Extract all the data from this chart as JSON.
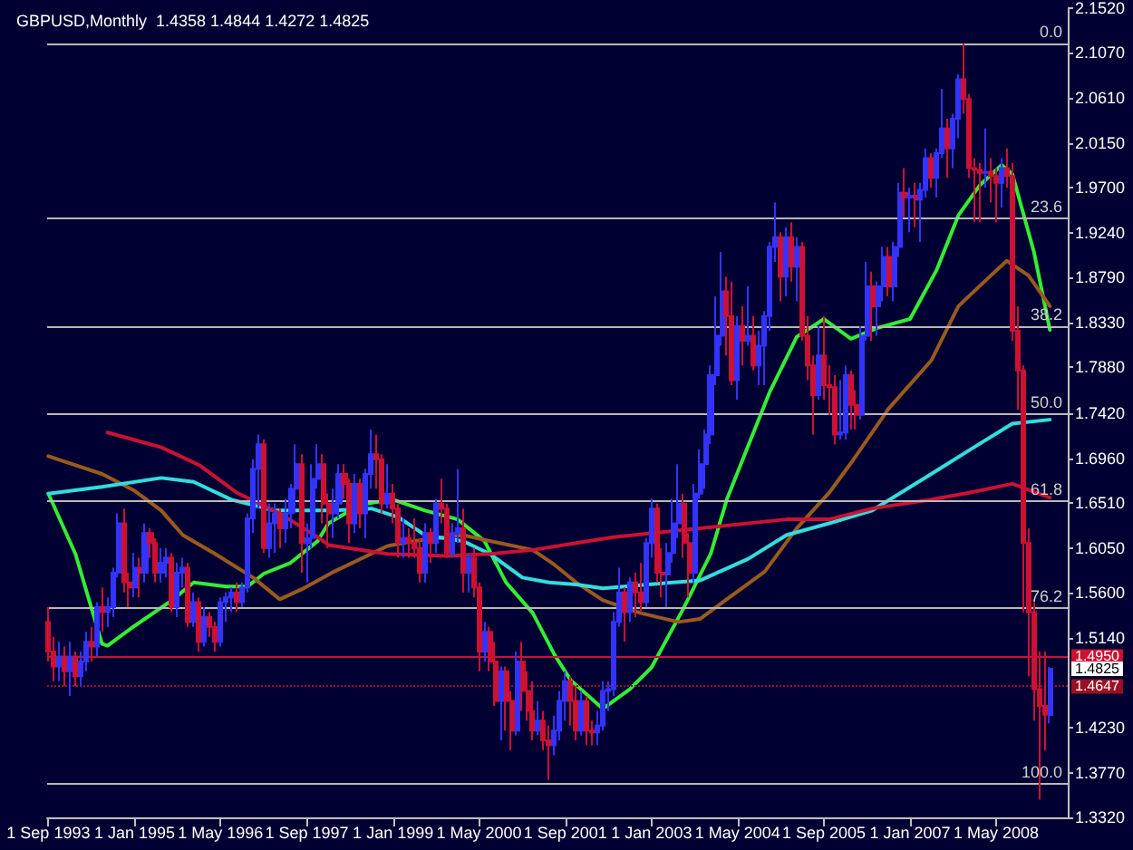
{
  "chart_data": {
    "type": "candlestick",
    "title": "GBPUSD,Monthly  1.4358 1.4844 1.4272 1.4825",
    "x": [
      "1993-09",
      "1993-10",
      "1993-11",
      "1993-12",
      "1994-01",
      "1994-02",
      "1994-03",
      "1994-04",
      "1994-05",
      "1994-06",
      "1994-07",
      "1994-08",
      "1994-09",
      "1994-10",
      "1994-11",
      "1994-12",
      "1995-01",
      "1995-02",
      "1995-03",
      "1995-04",
      "1995-05",
      "1995-06",
      "1995-07",
      "1995-08",
      "1995-09",
      "1995-10",
      "1995-11",
      "1995-12",
      "1996-01",
      "1996-02",
      "1996-03",
      "1996-04",
      "1996-05",
      "1996-06",
      "1996-07",
      "1996-08",
      "1996-09",
      "1996-10",
      "1996-11",
      "1996-12",
      "1997-01",
      "1997-02",
      "1997-03",
      "1997-04",
      "1997-05",
      "1997-06",
      "1997-07",
      "1997-08",
      "1997-09",
      "1997-10",
      "1997-11",
      "1997-12",
      "1998-01",
      "1998-02",
      "1998-03",
      "1998-04",
      "1998-05",
      "1998-06",
      "1998-07",
      "1998-08",
      "1998-09",
      "1998-10",
      "1998-11",
      "1998-12",
      "1999-01",
      "1999-02",
      "1999-03",
      "1999-04",
      "1999-05",
      "1999-06",
      "1999-07",
      "1999-08",
      "1999-09",
      "1999-10",
      "1999-11",
      "1999-12",
      "2000-01",
      "2000-02",
      "2000-03",
      "2000-04",
      "2000-05",
      "2000-06",
      "2000-07",
      "2000-08",
      "2000-09",
      "2000-10",
      "2000-11",
      "2000-12",
      "2001-01",
      "2001-02",
      "2001-03",
      "2001-04",
      "2001-05",
      "2001-06",
      "2001-07",
      "2001-08",
      "2001-09",
      "2001-10",
      "2001-11",
      "2001-12",
      "2002-01",
      "2002-02",
      "2002-03",
      "2002-04",
      "2002-05",
      "2002-06",
      "2002-07",
      "2002-08",
      "2002-09",
      "2002-10",
      "2002-11",
      "2002-12",
      "2003-01",
      "2003-02",
      "2003-03",
      "2003-04",
      "2003-05",
      "2003-06",
      "2003-07",
      "2003-08",
      "2003-09",
      "2003-10",
      "2003-11",
      "2003-12",
      "2004-01",
      "2004-02",
      "2004-03",
      "2004-04",
      "2004-05",
      "2004-06",
      "2004-07",
      "2004-08",
      "2004-09",
      "2004-10",
      "2004-11",
      "2004-12",
      "2005-01",
      "2005-02",
      "2005-03",
      "2005-04",
      "2005-05",
      "2005-06",
      "2005-07",
      "2005-08",
      "2005-09",
      "2005-10",
      "2005-11",
      "2005-12",
      "2006-01",
      "2006-02",
      "2006-03",
      "2006-04",
      "2006-05",
      "2006-06",
      "2006-07",
      "2006-08",
      "2006-09",
      "2006-10",
      "2006-11",
      "2006-12",
      "2007-01",
      "2007-02",
      "2007-03",
      "2007-04",
      "2007-05",
      "2007-06",
      "2007-07",
      "2007-08",
      "2007-09",
      "2007-10",
      "2007-11",
      "2007-12",
      "2008-01",
      "2008-02",
      "2008-03",
      "2008-04",
      "2008-05",
      "2008-06",
      "2008-07",
      "2008-08",
      "2008-09",
      "2008-10",
      "2008-11",
      "2008-12",
      "2009-01",
      "2009-02",
      "2009-03"
    ],
    "ohlc": [
      [
        1.53,
        1.545,
        1.49,
        1.5
      ],
      [
        1.5,
        1.515,
        1.47,
        1.485
      ],
      [
        1.485,
        1.51,
        1.47,
        1.495
      ],
      [
        1.495,
        1.505,
        1.465,
        1.48
      ],
      [
        1.48,
        1.51,
        1.455,
        1.495
      ],
      [
        1.495,
        1.5,
        1.465,
        1.475
      ],
      [
        1.475,
        1.5,
        1.465,
        1.49
      ],
      [
        1.49,
        1.52,
        1.48,
        1.51
      ],
      [
        1.51,
        1.525,
        1.49,
        1.505
      ],
      [
        1.505,
        1.55,
        1.495,
        1.545
      ],
      [
        1.545,
        1.565,
        1.52,
        1.54
      ],
      [
        1.54,
        1.555,
        1.525,
        1.545
      ],
      [
        1.545,
        1.585,
        1.535,
        1.58
      ],
      [
        1.58,
        1.64,
        1.575,
        1.63
      ],
      [
        1.63,
        1.645,
        1.56,
        1.57
      ],
      [
        1.57,
        1.58,
        1.545,
        1.565
      ],
      [
        1.565,
        1.6,
        1.555,
        1.585
      ],
      [
        1.585,
        1.595,
        1.555,
        1.58
      ],
      [
        1.58,
        1.63,
        1.57,
        1.62
      ],
      [
        1.62,
        1.625,
        1.595,
        1.61
      ],
      [
        1.61,
        1.615,
        1.57,
        1.58
      ],
      [
        1.58,
        1.605,
        1.57,
        1.59
      ],
      [
        1.59,
        1.605,
        1.575,
        1.595
      ],
      [
        1.595,
        1.6,
        1.54,
        1.545
      ],
      [
        1.545,
        1.59,
        1.535,
        1.58
      ],
      [
        1.58,
        1.595,
        1.565,
        1.585
      ],
      [
        1.585,
        1.59,
        1.525,
        1.53
      ],
      [
        1.53,
        1.56,
        1.525,
        1.55
      ],
      [
        1.55,
        1.555,
        1.5,
        1.51
      ],
      [
        1.51,
        1.545,
        1.505,
        1.535
      ],
      [
        1.535,
        1.54,
        1.515,
        1.525
      ],
      [
        1.525,
        1.53,
        1.5,
        1.51
      ],
      [
        1.51,
        1.555,
        1.505,
        1.55
      ],
      [
        1.55,
        1.56,
        1.53,
        1.555
      ],
      [
        1.555,
        1.565,
        1.54,
        1.56
      ],
      [
        1.56,
        1.57,
        1.54,
        1.55
      ],
      [
        1.55,
        1.57,
        1.545,
        1.565
      ],
      [
        1.565,
        1.64,
        1.56,
        1.635
      ],
      [
        1.635,
        1.695,
        1.62,
        1.685
      ],
      [
        1.685,
        1.72,
        1.645,
        1.71
      ],
      [
        1.71,
        1.715,
        1.6,
        1.605
      ],
      [
        1.605,
        1.65,
        1.595,
        1.63
      ],
      [
        1.63,
        1.65,
        1.6,
        1.64
      ],
      [
        1.64,
        1.645,
        1.605,
        1.625
      ],
      [
        1.625,
        1.655,
        1.61,
        1.64
      ],
      [
        1.64,
        1.67,
        1.625,
        1.665
      ],
      [
        1.665,
        1.71,
        1.64,
        1.69
      ],
      [
        1.69,
        1.7,
        1.58,
        1.61
      ],
      [
        1.61,
        1.63,
        1.57,
        1.615
      ],
      [
        1.615,
        1.69,
        1.605,
        1.675
      ],
      [
        1.675,
        1.71,
        1.665,
        1.69
      ],
      [
        1.69,
        1.7,
        1.63,
        1.65
      ],
      [
        1.65,
        1.66,
        1.605,
        1.64
      ],
      [
        1.64,
        1.665,
        1.615,
        1.65
      ],
      [
        1.65,
        1.69,
        1.635,
        1.68
      ],
      [
        1.68,
        1.69,
        1.655,
        1.67
      ],
      [
        1.67,
        1.675,
        1.61,
        1.63
      ],
      [
        1.63,
        1.68,
        1.62,
        1.67
      ],
      [
        1.67,
        1.675,
        1.625,
        1.64
      ],
      [
        1.64,
        1.685,
        1.615,
        1.68
      ],
      [
        1.68,
        1.725,
        1.665,
        1.7
      ],
      [
        1.7,
        1.72,
        1.665,
        1.695
      ],
      [
        1.695,
        1.7,
        1.64,
        1.65
      ],
      [
        1.65,
        1.69,
        1.645,
        1.66
      ],
      [
        1.66,
        1.67,
        1.63,
        1.645
      ],
      [
        1.645,
        1.65,
        1.595,
        1.61
      ],
      [
        1.61,
        1.635,
        1.595,
        1.615
      ],
      [
        1.615,
        1.625,
        1.595,
        1.61
      ],
      [
        1.61,
        1.635,
        1.595,
        1.605
      ],
      [
        1.605,
        1.615,
        1.57,
        1.58
      ],
      [
        1.58,
        1.63,
        1.57,
        1.62
      ],
      [
        1.62,
        1.625,
        1.59,
        1.61
      ],
      [
        1.61,
        1.655,
        1.6,
        1.65
      ],
      [
        1.65,
        1.675,
        1.63,
        1.645
      ],
      [
        1.645,
        1.65,
        1.595,
        1.6
      ],
      [
        1.6,
        1.63,
        1.595,
        1.62
      ],
      [
        1.62,
        1.685,
        1.61,
        1.625
      ],
      [
        1.625,
        1.645,
        1.56,
        1.58
      ],
      [
        1.58,
        1.6,
        1.56,
        1.595
      ],
      [
        1.595,
        1.605,
        1.555,
        1.565
      ],
      [
        1.565,
        1.57,
        1.48,
        1.5
      ],
      [
        1.5,
        1.53,
        1.49,
        1.52
      ],
      [
        1.52,
        1.525,
        1.48,
        1.49
      ],
      [
        1.49,
        1.51,
        1.445,
        1.45
      ],
      [
        1.45,
        1.485,
        1.41,
        1.48
      ],
      [
        1.48,
        1.485,
        1.42,
        1.45
      ],
      [
        1.45,
        1.46,
        1.4,
        1.42
      ],
      [
        1.42,
        1.5,
        1.415,
        1.49
      ],
      [
        1.49,
        1.51,
        1.44,
        1.46
      ],
      [
        1.46,
        1.48,
        1.43,
        1.44
      ],
      [
        1.44,
        1.47,
        1.41,
        1.42
      ],
      [
        1.42,
        1.45,
        1.415,
        1.43
      ],
      [
        1.43,
        1.44,
        1.4,
        1.41
      ],
      [
        1.41,
        1.425,
        1.37,
        1.405
      ],
      [
        1.405,
        1.435,
        1.395,
        1.42
      ],
      [
        1.42,
        1.46,
        1.41,
        1.45
      ],
      [
        1.45,
        1.48,
        1.43,
        1.47
      ],
      [
        1.47,
        1.475,
        1.425,
        1.45
      ],
      [
        1.45,
        1.465,
        1.41,
        1.42
      ],
      [
        1.42,
        1.46,
        1.415,
        1.45
      ],
      [
        1.45,
        1.455,
        1.405,
        1.42
      ],
      [
        1.42,
        1.43,
        1.405,
        1.418
      ],
      [
        1.418,
        1.44,
        1.405,
        1.425
      ],
      [
        1.425,
        1.47,
        1.42,
        1.46
      ],
      [
        1.46,
        1.47,
        1.44,
        1.462
      ],
      [
        1.462,
        1.54,
        1.455,
        1.53
      ],
      [
        1.53,
        1.585,
        1.525,
        1.56
      ],
      [
        1.56,
        1.565,
        1.51,
        1.54
      ],
      [
        1.54,
        1.575,
        1.53,
        1.57
      ],
      [
        1.57,
        1.58,
        1.535,
        1.56
      ],
      [
        1.56,
        1.59,
        1.54,
        1.55
      ],
      [
        1.55,
        1.615,
        1.545,
        1.61
      ],
      [
        1.61,
        1.655,
        1.595,
        1.645
      ],
      [
        1.645,
        1.65,
        1.57,
        1.58
      ],
      [
        1.58,
        1.605,
        1.555,
        1.578
      ],
      [
        1.578,
        1.61,
        1.545,
        1.6
      ],
      [
        1.6,
        1.655,
        1.59,
        1.63
      ],
      [
        1.63,
        1.69,
        1.615,
        1.65
      ],
      [
        1.65,
        1.66,
        1.595,
        1.61
      ],
      [
        1.61,
        1.62,
        1.555,
        1.58
      ],
      [
        1.58,
        1.67,
        1.57,
        1.66
      ],
      [
        1.66,
        1.705,
        1.655,
        1.69
      ],
      [
        1.69,
        1.725,
        1.665,
        1.72
      ],
      [
        1.72,
        1.79,
        1.71,
        1.78
      ],
      [
        1.78,
        1.86,
        1.77,
        1.82
      ],
      [
        1.82,
        1.905,
        1.81,
        1.865
      ],
      [
        1.865,
        1.88,
        1.8,
        1.84
      ],
      [
        1.84,
        1.875,
        1.77,
        1.775
      ],
      [
        1.775,
        1.84,
        1.755,
        1.83
      ],
      [
        1.83,
        1.85,
        1.79,
        1.815
      ],
      [
        1.815,
        1.87,
        1.81,
        1.82
      ],
      [
        1.82,
        1.84,
        1.785,
        1.79
      ],
      [
        1.79,
        1.825,
        1.77,
        1.81
      ],
      [
        1.81,
        1.845,
        1.77,
        1.84
      ],
      [
        1.84,
        1.915,
        1.825,
        1.91
      ],
      [
        1.91,
        1.955,
        1.895,
        1.92
      ],
      [
        1.92,
        1.925,
        1.855,
        1.88
      ],
      [
        1.88,
        1.93,
        1.86,
        1.92
      ],
      [
        1.92,
        1.935,
        1.875,
        1.89
      ],
      [
        1.89,
        1.92,
        1.855,
        1.91
      ],
      [
        1.91,
        1.915,
        1.815,
        1.82
      ],
      [
        1.82,
        1.84,
        1.775,
        1.79
      ],
      [
        1.79,
        1.8,
        1.72,
        1.76
      ],
      [
        1.76,
        1.83,
        1.755,
        1.8
      ],
      [
        1.8,
        1.84,
        1.755,
        1.77
      ],
      [
        1.77,
        1.79,
        1.74,
        1.768
      ],
      [
        1.768,
        1.78,
        1.71,
        1.72
      ],
      [
        1.72,
        1.775,
        1.715,
        1.722
      ],
      [
        1.722,
        1.79,
        1.715,
        1.78
      ],
      [
        1.78,
        1.785,
        1.725,
        1.75
      ],
      [
        1.75,
        1.765,
        1.725,
        1.74
      ],
      [
        1.74,
        1.83,
        1.735,
        1.82
      ],
      [
        1.82,
        1.895,
        1.815,
        1.87
      ],
      [
        1.87,
        1.885,
        1.815,
        1.85
      ],
      [
        1.85,
        1.875,
        1.82,
        1.87
      ],
      [
        1.87,
        1.91,
        1.855,
        1.9
      ],
      [
        1.9,
        1.91,
        1.86,
        1.87
      ],
      [
        1.87,
        1.915,
        1.855,
        1.91
      ],
      [
        1.91,
        1.975,
        1.9,
        1.965
      ],
      [
        1.965,
        1.99,
        1.94,
        1.96
      ],
      [
        1.96,
        1.97,
        1.925,
        1.962
      ],
      [
        1.962,
        1.975,
        1.93,
        1.958
      ],
      [
        1.958,
        1.975,
        1.915,
        1.968
      ],
      [
        1.968,
        2.01,
        1.96,
        2.0
      ],
      [
        2.0,
        2.005,
        1.97,
        1.98
      ],
      [
        1.98,
        2.01,
        1.96,
        2.005
      ],
      [
        2.005,
        2.07,
        2.0,
        2.03
      ],
      [
        2.03,
        2.04,
        1.98,
        2.01
      ],
      [
        2.01,
        2.045,
        1.99,
        2.04
      ],
      [
        2.04,
        2.085,
        2.02,
        2.08
      ],
      [
        2.08,
        2.116,
        2.045,
        2.06
      ],
      [
        2.06,
        2.065,
        1.98,
        1.99
      ],
      [
        1.99,
        2.0,
        1.935,
        1.988
      ],
      [
        1.988,
        1.995,
        1.935,
        1.985
      ],
      [
        1.985,
        2.03,
        1.97,
        1.986
      ],
      [
        1.986,
        2.0,
        1.955,
        1.982
      ],
      [
        1.982,
        1.99,
        1.935,
        1.975
      ],
      [
        1.975,
        2.0,
        1.95,
        1.99
      ],
      [
        1.99,
        2.01,
        1.97,
        1.982
      ],
      [
        1.982,
        1.995,
        1.815,
        1.825
      ],
      [
        1.825,
        1.85,
        1.745,
        1.785
      ],
      [
        1.785,
        1.79,
        1.54,
        1.61
      ],
      [
        1.61,
        1.625,
        1.475,
        1.54
      ],
      [
        1.54,
        1.55,
        1.43,
        1.462
      ],
      [
        1.462,
        1.5,
        1.35,
        1.445
      ],
      [
        1.445,
        1.5,
        1.4,
        1.436
      ],
      [
        1.4358,
        1.4844,
        1.4272,
        1.4825
      ]
    ],
    "colors": [
      "#cc1133",
      "#cc1133",
      "#3333ff",
      "#cc1133",
      "#3333ff",
      "#cc1133",
      "#3333ff",
      "#3333ff",
      "#cc1133",
      "#3333ff",
      "#cc1133",
      "#3333ff",
      "#3333ff",
      "#3333ff",
      "#cc1133",
      "#cc1133",
      "#3333ff",
      "#cc1133",
      "#3333ff",
      "#cc1133",
      "#cc1133",
      "#3333ff",
      "#3333ff",
      "#cc1133",
      "#3333ff",
      "#3333ff",
      "#cc1133",
      "#3333ff",
      "#cc1133",
      "#3333ff",
      "#cc1133",
      "#cc1133",
      "#3333ff",
      "#3333ff",
      "#3333ff",
      "#cc1133",
      "#3333ff",
      "#3333ff",
      "#3333ff",
      "#3333ff",
      "#cc1133",
      "#3333ff",
      "#3333ff",
      "#cc1133",
      "#3333ff",
      "#3333ff",
      "#3333ff",
      "#cc1133",
      "#3333ff",
      "#3333ff",
      "#3333ff",
      "#cc1133",
      "#cc1133",
      "#3333ff",
      "#3333ff",
      "#cc1133",
      "#cc1133",
      "#3333ff",
      "#cc1133",
      "#3333ff",
      "#3333ff",
      "#cc1133",
      "#cc1133",
      "#3333ff",
      "#cc1133",
      "#cc1133",
      "#3333ff",
      "#cc1133",
      "#cc1133",
      "#cc1133",
      "#3333ff",
      "#cc1133",
      "#3333ff",
      "#cc1133",
      "#cc1133",
      "#3333ff",
      "#3333ff",
      "#cc1133",
      "#3333ff",
      "#cc1133",
      "#cc1133",
      "#3333ff",
      "#cc1133",
      "#cc1133",
      "#3333ff",
      "#cc1133",
      "#cc1133",
      "#3333ff",
      "#cc1133",
      "#cc1133",
      "#cc1133",
      "#3333ff",
      "#cc1133",
      "#cc1133",
      "#3333ff",
      "#3333ff",
      "#3333ff",
      "#cc1133",
      "#cc1133",
      "#3333ff",
      "#cc1133",
      "#cc1133",
      "#3333ff",
      "#3333ff",
      "#3333ff",
      "#3333ff",
      "#3333ff",
      "#cc1133",
      "#3333ff",
      "#cc1133",
      "#cc1133",
      "#3333ff",
      "#3333ff",
      "#cc1133",
      "#cc1133",
      "#3333ff",
      "#3333ff",
      "#3333ff",
      "#cc1133",
      "#cc1133",
      "#3333ff",
      "#3333ff",
      "#3333ff",
      "#3333ff",
      "#3333ff",
      "#3333ff",
      "#cc1133",
      "#cc1133",
      "#3333ff",
      "#cc1133",
      "#3333ff",
      "#cc1133",
      "#3333ff",
      "#3333ff",
      "#3333ff",
      "#3333ff",
      "#cc1133",
      "#3333ff",
      "#cc1133",
      "#3333ff",
      "#cc1133",
      "#cc1133",
      "#cc1133",
      "#3333ff",
      "#cc1133",
      "#cc1133",
      "#cc1133",
      "#3333ff",
      "#3333ff",
      "#cc1133",
      "#cc1133",
      "#3333ff",
      "#3333ff",
      "#cc1133",
      "#3333ff",
      "#3333ff",
      "#cc1133",
      "#3333ff",
      "#3333ff",
      "#cc1133",
      "#3333ff",
      "#cc1133",
      "#3333ff",
      "#3333ff",
      "#cc1133",
      "#3333ff",
      "#3333ff",
      "#cc1133",
      "#3333ff",
      "#3333ff",
      "#cc1133",
      "#cc1133",
      "#cc1133",
      "#cc1133",
      "#3333ff",
      "#cc1133",
      "#cc1133",
      "#3333ff",
      "#cc1133",
      "#cc1133",
      "#cc1133",
      "#cc1133",
      "#cc1133",
      "#cc1133",
      "#cc1133",
      "#cc1133",
      "#3333ff"
    ],
    "series": [
      {
        "type": "line",
        "color": "#33ee33",
        "x": [
          "1993-09",
          "1994-02",
          "1994-07",
          "1994-08",
          "1995-01",
          "1995-08",
          "1995-12",
          "1996-06",
          "1996-10",
          "1997-01",
          "1997-06",
          "1997-11",
          "1998-01",
          "1998-07",
          "1999-01",
          "1999-07",
          "2000-01",
          "2000-06",
          "2000-10",
          "2001-03",
          "2001-07",
          "2001-10",
          "2002-04",
          "2002-09",
          "2003-01",
          "2003-07",
          "2003-12",
          "2004-03",
          "2004-07",
          "2004-11",
          "2005-04",
          "2005-09",
          "2006-02",
          "2006-07",
          "2007-01",
          "2007-06",
          "2007-10",
          "2008-02",
          "2008-06",
          "2008-08",
          "2008-12",
          "2009-03"
        ],
        "values": [
          1.66,
          1.599,
          1.508,
          1.506,
          1.526,
          1.552,
          1.57,
          1.566,
          1.566,
          1.579,
          1.59,
          1.612,
          1.63,
          1.649,
          1.654,
          1.643,
          1.634,
          1.612,
          1.57,
          1.539,
          1.497,
          1.471,
          1.442,
          1.462,
          1.484,
          1.544,
          1.599,
          1.654,
          1.709,
          1.764,
          1.819,
          1.837,
          1.817,
          1.828,
          1.837,
          1.887,
          1.942,
          1.973,
          1.993,
          1.984,
          1.905,
          1.826
        ]
      },
      {
        "type": "line",
        "color": "#9a5a1e",
        "x": [
          "1993-09",
          "1994-07",
          "1995-01",
          "1995-06",
          "1995-10",
          "1996-04",
          "1996-11",
          "1997-04",
          "1997-08",
          "1997-11",
          "1998-02",
          "1998-12",
          "1999-05",
          "2000-02",
          "2000-07",
          "2001-03",
          "2001-07",
          "2001-11",
          "2002-04",
          "2002-11",
          "2003-06",
          "2003-10",
          "2004-04",
          "2004-10",
          "2005-04",
          "2005-10",
          "2006-02",
          "2006-09",
          "2007-05",
          "2007-10",
          "2008-04",
          "2008-07",
          "2008-11",
          "2009-03"
        ],
        "values": [
          1.698,
          1.68,
          1.663,
          1.643,
          1.618,
          1.599,
          1.575,
          1.553,
          1.563,
          1.572,
          1.581,
          1.607,
          1.612,
          1.618,
          1.612,
          1.603,
          1.588,
          1.57,
          1.552,
          1.539,
          1.53,
          1.533,
          1.557,
          1.581,
          1.625,
          1.661,
          1.691,
          1.746,
          1.795,
          1.85,
          1.881,
          1.896,
          1.881,
          1.85
        ]
      },
      {
        "type": "line",
        "color": "#33dddd",
        "x": [
          "1993-09",
          "1994-07",
          "1995-06",
          "1995-12",
          "1996-07",
          "1997-03",
          "1997-11",
          "1998-02",
          "1998-09",
          "1999-02",
          "1999-07",
          "2000-02",
          "2000-07",
          "2001-01",
          "2001-06",
          "2001-11",
          "2002-04",
          "2003-05",
          "2003-10",
          "2004-07",
          "2005-02",
          "2005-10",
          "2006-06",
          "2007-05",
          "2007-12",
          "2008-08",
          "2009-03"
        ],
        "values": [
          1.66,
          1.667,
          1.676,
          1.672,
          1.654,
          1.643,
          1.643,
          1.643,
          1.645,
          1.636,
          1.618,
          1.612,
          1.599,
          1.575,
          1.57,
          1.568,
          1.564,
          1.57,
          1.572,
          1.594,
          1.618,
          1.63,
          1.643,
          1.68,
          1.704,
          1.731,
          1.735
        ]
      },
      {
        "type": "line",
        "color": "#cc1133",
        "x": [
          "1994-08",
          "1995-06",
          "1996-01",
          "1996-08",
          "1997-04",
          "1997-11",
          "1998-01",
          "1998-12",
          "1999-11",
          "2000-07",
          "2001-03",
          "2001-11",
          "2002-06",
          "2003-10",
          "2005-02",
          "2005-10",
          "2006-06",
          "2007-05",
          "2007-12",
          "2008-08",
          "2009-03"
        ],
        "values": [
          1.722,
          1.707,
          1.689,
          1.661,
          1.64,
          1.616,
          1.608,
          1.599,
          1.597,
          1.599,
          1.603,
          1.61,
          1.616,
          1.625,
          1.634,
          1.634,
          1.645,
          1.654,
          1.661,
          1.67,
          1.656
        ]
      }
    ],
    "xlim": [
      "1993-08-25",
      "2009-06-10"
    ],
    "xticks": [
      {
        "value": "1993-09",
        "label": "1 Sep 1993"
      },
      {
        "value": "1995-01",
        "label": "1 Jan 1995"
      },
      {
        "value": "1996-05",
        "label": "1 May 1996"
      },
      {
        "value": "1997-09",
        "label": "1 Sep 1997"
      },
      {
        "value": "1999-01",
        "label": "1 Jan 1999"
      },
      {
        "value": "2000-05",
        "label": "1 May 2000"
      },
      {
        "value": "2001-09",
        "label": "1 Sep 2001"
      },
      {
        "value": "2003-01",
        "label": "1 Jan 2003"
      },
      {
        "value": "2004-05",
        "label": "1 May 2004"
      },
      {
        "value": "2005-09",
        "label": "1 Sep 2005"
      },
      {
        "value": "2007-01",
        "label": "1 Jan 2007"
      },
      {
        "value": "2008-05",
        "label": "1 May 2008"
      }
    ],
    "ylim": [
      1.332,
      2.152
    ],
    "yticks": [
      {
        "value": 2.152,
        "label": "2.1520"
      },
      {
        "value": 2.107,
        "label": "2.1070"
      },
      {
        "value": 2.061,
        "label": "2.0610"
      },
      {
        "value": 2.015,
        "label": "2.0150"
      },
      {
        "value": 1.97,
        "label": "1.9700"
      },
      {
        "value": 1.924,
        "label": "1.9240"
      },
      {
        "value": 1.879,
        "label": "1.8790"
      },
      {
        "value": 1.833,
        "label": "1.8330"
      },
      {
        "value": 1.788,
        "label": "1.7880"
      },
      {
        "value": 1.742,
        "label": "1.7420"
      },
      {
        "value": 1.696,
        "label": "1.6960"
      },
      {
        "value": 1.651,
        "label": "1.6510"
      },
      {
        "value": 1.605,
        "label": "1.6050"
      },
      {
        "value": 1.56,
        "label": "1.5600"
      },
      {
        "value": 1.514,
        "label": "1.5140"
      },
      {
        "value": 1.423,
        "label": "1.4230"
      },
      {
        "value": 1.377,
        "label": "1.3770"
      },
      {
        "value": 1.332,
        "label": "1.3320"
      }
    ],
    "ref_lines": [
      {
        "axis": "y",
        "value": 2.1161
      },
      {
        "axis": "y",
        "value": 1.939
      },
      {
        "axis": "y",
        "value": 1.8295
      },
      {
        "axis": "y",
        "value": 1.7409
      },
      {
        "axis": "y",
        "value": 1.6524
      },
      {
        "axis": "y",
        "value": 1.5443
      },
      {
        "axis": "y",
        "value": 1.3657
      },
      {
        "axis": "y",
        "value": 1.495,
        "label": "1.4950",
        "color": "#cc1133"
      },
      {
        "axis": "y",
        "value": 1.4647,
        "label": "1.4647",
        "color": "#991122",
        "line_style": "dotted"
      }
    ],
    "annotations": [
      {
        "text": "0.0",
        "y": 2.1161
      },
      {
        "text": "23.6",
        "y": 1.939
      },
      {
        "text": "38.2",
        "y": 1.8295
      },
      {
        "text": "50.0",
        "y": 1.7409
      },
      {
        "text": "61.8",
        "y": 1.6524
      },
      {
        "text": "76.2",
        "y": 1.5443
      },
      {
        "text": "100.0",
        "y": 1.3657
      },
      {
        "text": "1.4825",
        "x": "2009-03",
        "y": 1.4825
      }
    ]
  }
}
